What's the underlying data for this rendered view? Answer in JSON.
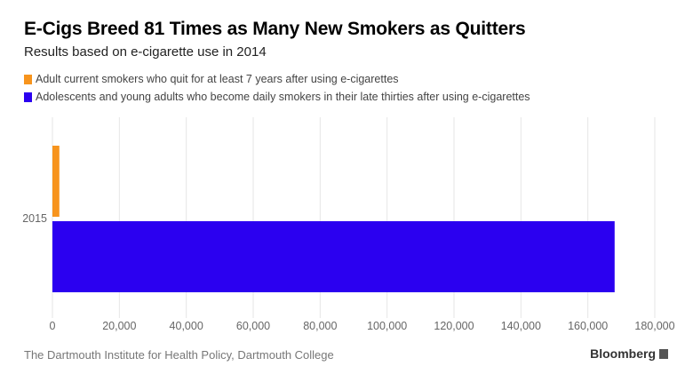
{
  "title": "E-Cigs Breed 81 Times as Many New Smokers as Quitters",
  "subtitle": "Results based on e-cigarette use in 2014",
  "source": "The Dartmouth Institute for Health Policy, Dartmouth College",
  "brand": "Bloomberg",
  "colors": {
    "quitters": "#f7941d",
    "smokers": "#2b00f0",
    "grid": "#e6e6e6",
    "tick_text": "#666666"
  },
  "chart_data": {
    "type": "bar",
    "orientation": "horizontal",
    "title": "E-Cigs Breed 81 Times as Many New Smokers as Quitters",
    "subtitle": "Results based on e-cigarette use in 2014",
    "categories": [
      "2015"
    ],
    "series": [
      {
        "name": "Adult current smokers who quit for at least 7 years after using e-cigarettes",
        "values": [
          2070
        ]
      },
      {
        "name": "Adolescents and young adults who become daily smokers in their late thirties after using e-cigarettes",
        "values": [
          168000
        ]
      }
    ],
    "xlim": [
      0,
      180000
    ],
    "x_ticks": [
      "0",
      "20,000",
      "40,000",
      "60,000",
      "80,000",
      "100,000",
      "120,000",
      "140,000",
      "160,000",
      "180,000"
    ],
    "grid": true,
    "legend": "top-left"
  }
}
